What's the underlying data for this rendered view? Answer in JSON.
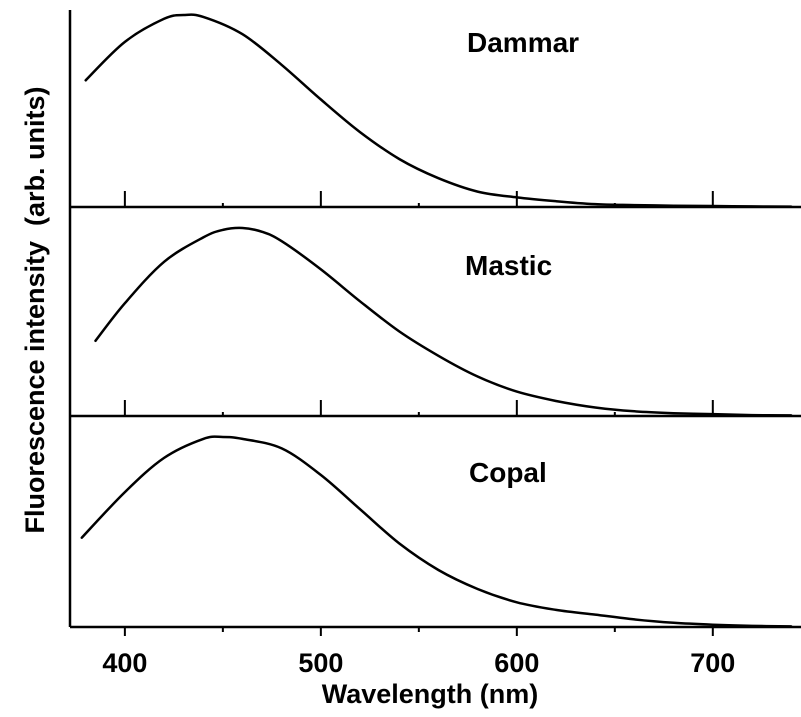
{
  "chart_data": {
    "type": "line",
    "layout": "stacked-panels",
    "xlabel": "Wavelength  (nm)",
    "ylabel": "Fluorescence intensity  (arb. units)",
    "xlim": [
      372,
      745
    ],
    "ylim": [
      0,
      1
    ],
    "x_ticks": [
      400,
      450,
      500,
      550,
      600,
      650,
      700
    ],
    "x_tick_labels": [
      "400",
      "500",
      "600",
      "700"
    ],
    "grid": false,
    "line_color": "#000000",
    "series": [
      {
        "name": "Dammar",
        "x": [
          380,
          400,
          420,
          430,
          440,
          460,
          480,
          500,
          520,
          540,
          560,
          580,
          600,
          620,
          640,
          660,
          680,
          700,
          720,
          740
        ],
        "y": [
          0.66,
          0.86,
          0.98,
          1.0,
          0.99,
          0.9,
          0.74,
          0.56,
          0.39,
          0.25,
          0.15,
          0.08,
          0.05,
          0.03,
          0.015,
          0.01,
          0.007,
          0.005,
          0.003,
          0.002
        ]
      },
      {
        "name": "Mastic",
        "x": [
          385,
          400,
          420,
          440,
          450,
          460,
          470,
          480,
          500,
          520,
          540,
          560,
          580,
          600,
          620,
          640,
          660,
          680,
          700,
          720,
          740
        ],
        "y": [
          0.4,
          0.6,
          0.82,
          0.95,
          0.99,
          1.0,
          0.98,
          0.93,
          0.78,
          0.61,
          0.45,
          0.32,
          0.21,
          0.13,
          0.08,
          0.045,
          0.025,
          0.015,
          0.01,
          0.005,
          0.003
        ]
      },
      {
        "name": "Copal",
        "x": [
          378,
          400,
          420,
          440,
          450,
          460,
          480,
          500,
          520,
          540,
          560,
          580,
          600,
          620,
          640,
          660,
          680,
          700,
          720,
          740
        ],
        "y": [
          0.47,
          0.71,
          0.89,
          0.99,
          1.0,
          0.99,
          0.94,
          0.8,
          0.62,
          0.44,
          0.3,
          0.2,
          0.13,
          0.09,
          0.065,
          0.04,
          0.022,
          0.012,
          0.006,
          0.003
        ]
      }
    ]
  }
}
